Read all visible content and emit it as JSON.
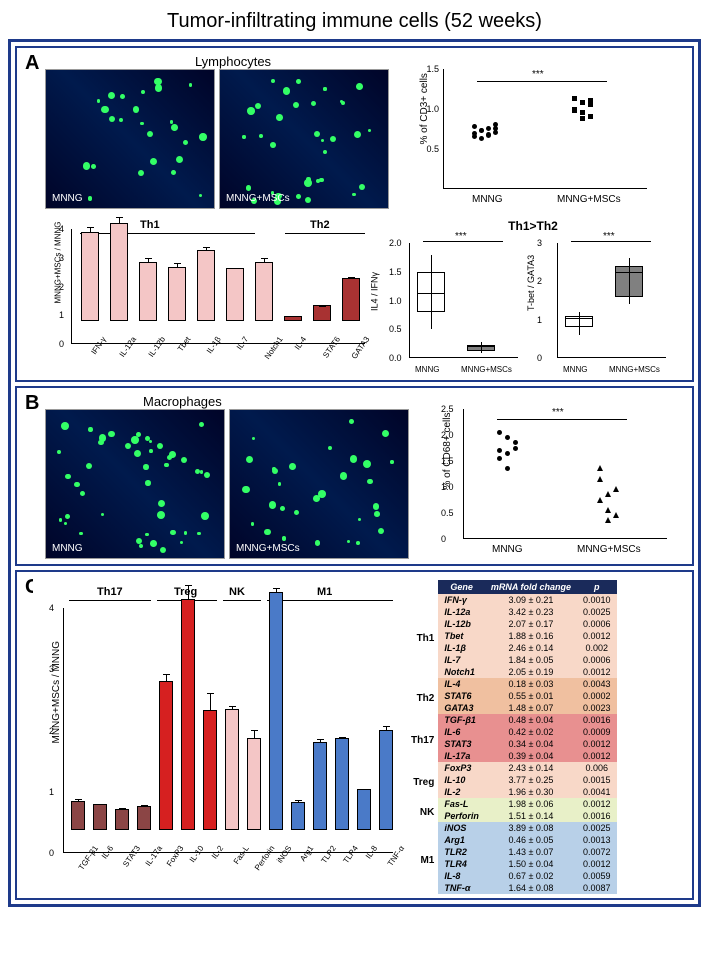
{
  "title": "Tumor-infiltrating immune cells (52 weeks)",
  "panelA": {
    "letter": "A",
    "sectionTitle": "Lymphocytes",
    "micro1_label": "MNNG",
    "micro2_label": "MNNG+MSCs",
    "cd3_chart": {
      "ylabel": "% of CD3+ cells",
      "ylim": [
        0,
        1.5
      ],
      "yticks": [
        "0.5",
        "1.0",
        "1.5"
      ],
      "groups": [
        "MNNG",
        "MNNG+MSCs"
      ],
      "points_left": [
        0.62,
        0.7,
        0.65,
        0.68,
        0.75,
        0.6,
        0.72,
        0.78,
        0.66,
        0.7,
        0.64,
        0.73
      ],
      "points_right": [
        0.95,
        1.05,
        0.88,
        1.1,
        0.92,
        1.02,
        0.96,
        0.85,
        1.08
      ],
      "sig": "***"
    },
    "th_bar_chart": {
      "ylabel": "MNNG+MSCs / MNNG",
      "ylim": [
        0,
        4
      ],
      "yticks": [
        "0",
        "1",
        "2",
        "3",
        "4"
      ],
      "th1_label": "Th1",
      "th2_label": "Th2",
      "bars": [
        {
          "name": "IFN-γ",
          "val": 3.09,
          "color": "#f4c6c6",
          "err": 0.21
        },
        {
          "name": "IL-12a",
          "val": 3.42,
          "color": "#f4c6c6",
          "err": 0.23
        },
        {
          "name": "IL-12b",
          "val": 2.07,
          "color": "#f4c6c6",
          "err": 0.17
        },
        {
          "name": "Tbet",
          "val": 1.88,
          "color": "#f4c6c6",
          "err": 0.16
        },
        {
          "name": "IL-1β",
          "val": 2.46,
          "color": "#f4c6c6",
          "err": 0.14
        },
        {
          "name": "IL-7",
          "val": 1.84,
          "color": "#f4c6c6",
          "err": 0.05
        },
        {
          "name": "Notch1",
          "val": 2.05,
          "color": "#f4c6c6",
          "err": 0.19
        },
        {
          "name": "IL-4",
          "val": 0.18,
          "color": "#a83232",
          "err": 0.03
        },
        {
          "name": "STAT6",
          "val": 0.55,
          "color": "#a83232",
          "err": 0.01
        },
        {
          "name": "GATA3",
          "val": 1.48,
          "color": "#a83232",
          "err": 0.07
        }
      ]
    },
    "ratio_label": "Th1>Th2",
    "il4_ifn": {
      "ylabel": "IL4 / IFNγ",
      "ylim": [
        0,
        2.0
      ],
      "yticks": [
        "0.0",
        "0.5",
        "1.0",
        "1.5",
        "2.0"
      ],
      "groups": [
        "MNNG",
        "MNNG+MSCs"
      ],
      "box1": {
        "median": 1.1,
        "q1": 0.8,
        "q3": 1.5,
        "wmin": 0.5,
        "wmax": 1.8,
        "fill": "#ffffff"
      },
      "box2": {
        "median": 0.18,
        "q1": 0.12,
        "q3": 0.22,
        "wmin": 0.08,
        "wmax": 0.28,
        "fill": "#808080"
      },
      "sig": "***"
    },
    "tbet_gata3": {
      "ylabel": "T-bet / GATA3",
      "ylim": [
        0,
        3
      ],
      "yticks": [
        "0",
        "1",
        "2",
        "3"
      ],
      "groups": [
        "MNNG",
        "MNNG+MSCs"
      ],
      "box1": {
        "median": 1.0,
        "q1": 0.8,
        "q3": 1.1,
        "wmin": 0.6,
        "wmax": 1.2,
        "fill": "#ffffff"
      },
      "box2": {
        "median": 2.2,
        "q1": 1.6,
        "q3": 2.4,
        "wmin": 1.4,
        "wmax": 2.6,
        "fill": "#808080"
      },
      "sig": "***"
    }
  },
  "panelB": {
    "letter": "B",
    "sectionTitle": "Macrophages",
    "micro1_label": "MNNG",
    "micro2_label": "MNNG+MSCs",
    "cd68_chart": {
      "ylabel": "% of CD68+ cells",
      "ylim": [
        0,
        2.5
      ],
      "yticks": [
        "0",
        "0.5",
        "1.0",
        "1.5",
        "2.0",
        "2.5"
      ],
      "groups": [
        "MNNG",
        "MNNG+MSCs"
      ],
      "points_left": [
        1.5,
        1.6,
        1.7,
        1.65,
        1.3,
        1.8,
        2.0,
        1.9
      ],
      "points_right": [
        0.7,
        0.8,
        0.4,
        1.1,
        0.5,
        0.9,
        1.3,
        0.3
      ],
      "sig": "***"
    }
  },
  "panelC": {
    "letter": "C",
    "bar_chart": {
      "ylabel": "MNNG+MSCs / MNNG",
      "ylim": [
        0,
        4
      ],
      "yticks": [
        "0",
        "1",
        "2",
        "3",
        "4"
      ],
      "categories": [
        {
          "name": "Th17",
          "start": 0,
          "end": 4
        },
        {
          "name": "Treg",
          "start": 4,
          "end": 7
        },
        {
          "name": "NK",
          "start": 7,
          "end": 9
        },
        {
          "name": "M1",
          "start": 9,
          "end": 15
        }
      ],
      "bars": [
        {
          "name": "TGF-β1",
          "val": 0.48,
          "color": "#8b4545",
          "err": 0.04
        },
        {
          "name": "IL-6",
          "val": 0.42,
          "color": "#8b4545",
          "err": 0.02
        },
        {
          "name": "STAT3",
          "val": 0.34,
          "color": "#8b4545",
          "err": 0.04
        },
        {
          "name": "IL-17a",
          "val": 0.39,
          "color": "#8b4545",
          "err": 0.04
        },
        {
          "name": "FoxP3",
          "val": 2.43,
          "color": "#d62020",
          "err": 0.14
        },
        {
          "name": "IL-10",
          "val": 3.77,
          "color": "#d62020",
          "err": 0.25
        },
        {
          "name": "IL-2",
          "val": 1.96,
          "color": "#d62020",
          "err": 0.3
        },
        {
          "name": "Fas-L",
          "val": 1.98,
          "color": "#f4c6c6",
          "err": 0.06
        },
        {
          "name": "Perforin",
          "val": 1.51,
          "color": "#f4c6c6",
          "err": 0.14
        },
        {
          "name": "iNOS",
          "val": 3.89,
          "color": "#4a7ac8",
          "err": 0.08
        },
        {
          "name": "Arg1",
          "val": 0.46,
          "color": "#4a7ac8",
          "err": 0.05
        },
        {
          "name": "TLR2",
          "val": 1.43,
          "color": "#4a7ac8",
          "err": 0.07
        },
        {
          "name": "TLR4",
          "val": 1.5,
          "color": "#4a7ac8",
          "err": 0.04
        },
        {
          "name": "IL-8",
          "val": 0.67,
          "color": "#4a7ac8",
          "err": 0.02
        },
        {
          "name": "TNF-α",
          "val": 1.64,
          "color": "#4a7ac8",
          "err": 0.08
        }
      ]
    },
    "table": {
      "headers": [
        "Gene",
        "mRNA fold change",
        "p"
      ],
      "groups": [
        {
          "name": "Th1",
          "color": "#f8d8c8",
          "rows": [
            [
              "IFN-γ",
              "3.09 ± 0.21",
              "0.0010"
            ],
            [
              "IL-12a",
              "3.42 ± 0.23",
              "0.0025"
            ],
            [
              "IL-12b",
              "2.07 ± 0.17",
              "0.0006"
            ],
            [
              "Tbet",
              "1.88 ± 0.16",
              "0.0012"
            ],
            [
              "IL-1β",
              "2.46 ± 0.14",
              "0.002"
            ],
            [
              "IL-7",
              "1.84 ± 0.05",
              "0.0006"
            ],
            [
              "Notch1",
              "2.05 ± 0.19",
              "0.0012"
            ]
          ]
        },
        {
          "name": "Th2",
          "color": "#f0c0a0",
          "rows": [
            [
              "IL-4",
              "0.18 ± 0.03",
              "0.0043"
            ],
            [
              "STAT6",
              "0.55 ± 0.01",
              "0.0002"
            ],
            [
              "GATA3",
              "1.48 ± 0.07",
              "0.0023"
            ]
          ]
        },
        {
          "name": "Th17",
          "color": "#e89090",
          "rows": [
            [
              "TGF-β1",
              "0.48 ± 0.04",
              "0.0016"
            ],
            [
              "IL-6",
              "0.42 ± 0.02",
              "0.0009"
            ],
            [
              "STAT3",
              "0.34 ± 0.04",
              "0.0012"
            ],
            [
              "IL-17a",
              "0.39 ± 0.04",
              "0.0012"
            ]
          ]
        },
        {
          "name": "Treg",
          "color": "#f8d8c8",
          "rows": [
            [
              "FoxP3",
              "2.43 ± 0.14",
              "0.006"
            ],
            [
              "IL-10",
              "3.77 ± 0.25",
              "0.0015"
            ],
            [
              "IL-2",
              "1.96 ± 0.30",
              "0.0041"
            ]
          ]
        },
        {
          "name": "NK",
          "color": "#e8f0c8",
          "rows": [
            [
              "Fas-L",
              "1.98 ± 0.06",
              "0.0012"
            ],
            [
              "Perforin",
              "1.51 ± 0.14",
              "0.0016"
            ]
          ]
        },
        {
          "name": "M1",
          "color": "#b8d0e8",
          "rows": [
            [
              "iNOS",
              "3.89 ± 0.08",
              "0.0025"
            ],
            [
              "Arg1",
              "0.46 ± 0.05",
              "0.0013"
            ],
            [
              "TLR2",
              "1.43 ± 0.07",
              "0.0072"
            ],
            [
              "TLR4",
              "1.50 ± 0.04",
              "0.0012"
            ],
            [
              "IL-8",
              "0.67 ± 0.02",
              "0.0059"
            ],
            [
              "TNF-α",
              "1.64 ± 0.08",
              "0.0087"
            ]
          ]
        }
      ]
    }
  }
}
